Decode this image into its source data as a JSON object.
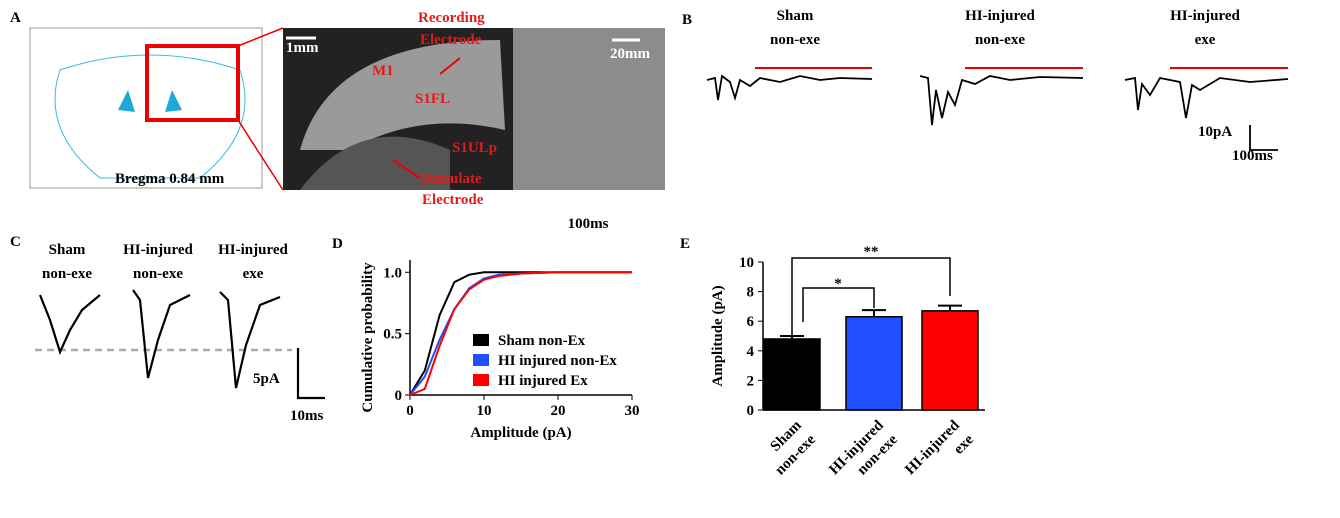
{
  "panel_a": {
    "label": "A",
    "bregma": "Bregma 0.84 mm",
    "scale_left": "1mm",
    "scale_right": "20mm",
    "recording": [
      "Recording",
      "Electrode"
    ],
    "m1": "M1",
    "s1fl": "S1FL",
    "s1ulp": "S1ULp",
    "stimulate": [
      "Stimulate",
      "Electrode"
    ]
  },
  "panel_b": {
    "label": "B",
    "titles": [
      [
        "Sham",
        "non-exe"
      ],
      [
        "HI-injured",
        "non-exe"
      ],
      [
        "HI-injured",
        "exe"
      ]
    ],
    "scale_y": "10pA",
    "scale_x": "100ms"
  },
  "panel_c": {
    "label": "C",
    "titles": [
      [
        "Sham",
        "non-exe"
      ],
      [
        "HI-injured",
        "non-exe"
      ],
      [
        "HI-injured",
        "exe"
      ]
    ],
    "scale_y": "5pA",
    "scale_x": "10ms"
  },
  "chart_data": [
    {
      "type": "line",
      "label": "D",
      "annotation": "100ms",
      "xlabel": "Amplitude (pA)",
      "ylabel": "Cumulative probability",
      "x": [
        0,
        2,
        4,
        6,
        8,
        10,
        12,
        15,
        20,
        25,
        30
      ],
      "series": [
        {
          "name": "Sham non-Ex",
          "color": "#000000",
          "values": [
            0,
            0.2,
            0.65,
            0.92,
            0.98,
            1,
            1,
            1,
            1,
            1,
            1
          ]
        },
        {
          "name": "HI injured  non-Ex",
          "color": "#1f4fff",
          "values": [
            0,
            0.15,
            0.45,
            0.7,
            0.87,
            0.95,
            0.98,
            0.99,
            1,
            1,
            1
          ]
        },
        {
          "name": "HI injured  Ex",
          "color": "#ff0000",
          "values": [
            0,
            0.05,
            0.4,
            0.7,
            0.86,
            0.94,
            0.97,
            0.99,
            1,
            1,
            1
          ]
        }
      ],
      "xlim": [
        0,
        30
      ],
      "xticks": [
        0,
        10,
        20,
        30
      ],
      "ylim": [
        0,
        1.1
      ],
      "yticks": [
        0,
        0.5,
        {
          "value": 1,
          "label": "1.0"
        }
      ]
    },
    {
      "type": "bar",
      "label": "E",
      "ylabel": "Amplitude (pA)",
      "categories": [
        "Sham non-exe",
        "HI-injured non-exe",
        "HI-injured exe"
      ],
      "values": [
        4.8,
        6.3,
        6.7
      ],
      "errors": [
        0.2,
        0.45,
        0.35
      ],
      "colors": [
        "#000000",
        "#1f4fff",
        "#ff0000"
      ],
      "ylim": [
        0,
        10
      ],
      "yticks": [
        0,
        2,
        4,
        6,
        8,
        10
      ],
      "significance": [
        "*",
        "**"
      ]
    }
  ]
}
